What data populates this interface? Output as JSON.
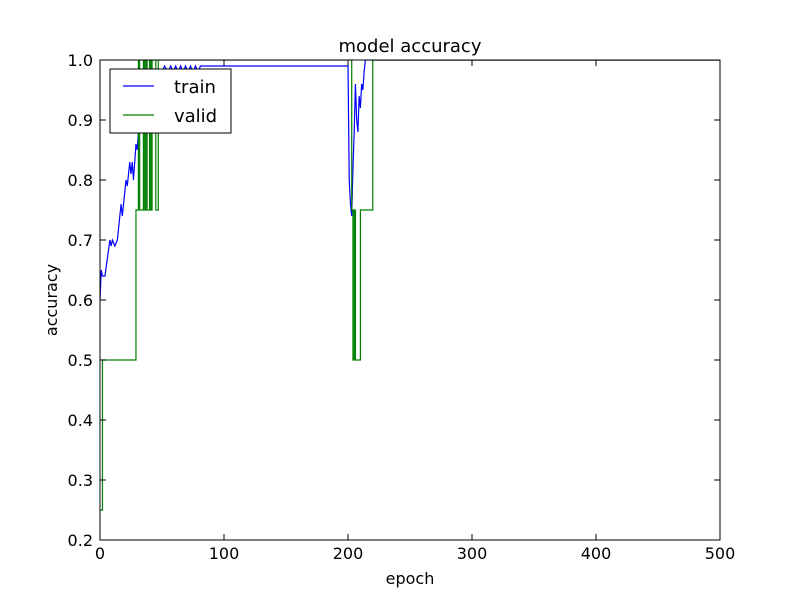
{
  "chart_data": {
    "type": "line",
    "title": "model accuracy",
    "xlabel": "epoch",
    "ylabel": "accuracy",
    "xlim": [
      0,
      500
    ],
    "ylim": [
      0.2,
      1.0
    ],
    "xticks": [
      0,
      100,
      200,
      300,
      400,
      500
    ],
    "yticks": [
      0.2,
      0.3,
      0.4,
      0.5,
      0.6,
      0.7,
      0.8,
      0.9,
      1.0
    ],
    "xtick_labels": [
      "0",
      "100",
      "200",
      "300",
      "400",
      "500"
    ],
    "ytick_labels": [
      "0.2",
      "0.3",
      "0.4",
      "0.5",
      "0.6",
      "0.7",
      "0.8",
      "0.9",
      "1.0"
    ],
    "grid": false,
    "legend_position": "top-left",
    "series": [
      {
        "name": "train",
        "color": "#0000ff",
        "points": [
          [
            0,
            0.6
          ],
          [
            1,
            0.65
          ],
          [
            2,
            0.64
          ],
          [
            4,
            0.64
          ],
          [
            6,
            0.67
          ],
          [
            8,
            0.7
          ],
          [
            9,
            0.69
          ],
          [
            10,
            0.7
          ],
          [
            12,
            0.69
          ],
          [
            14,
            0.7
          ],
          [
            16,
            0.74
          ],
          [
            17,
            0.76
          ],
          [
            18,
            0.74
          ],
          [
            19,
            0.76
          ],
          [
            21,
            0.8
          ],
          [
            22,
            0.79
          ],
          [
            24,
            0.83
          ],
          [
            25,
            0.81
          ],
          [
            26,
            0.83
          ],
          [
            27,
            0.8
          ],
          [
            29,
            0.86
          ],
          [
            30,
            0.85
          ],
          [
            31,
            0.88
          ],
          [
            33,
            0.91
          ],
          [
            34,
            0.89
          ],
          [
            36,
            0.93
          ],
          [
            37,
            0.92
          ],
          [
            38,
            0.94
          ],
          [
            40,
            0.94
          ],
          [
            42,
            0.96
          ],
          [
            44,
            0.97
          ],
          [
            46,
            0.97
          ],
          [
            48,
            0.97
          ],
          [
            50,
            0.98
          ],
          [
            52,
            0.99
          ],
          [
            55,
            0.98
          ],
          [
            57,
            0.99
          ],
          [
            59,
            0.98
          ],
          [
            61,
            0.99
          ],
          [
            63,
            0.98
          ],
          [
            65,
            0.99
          ],
          [
            67,
            0.98
          ],
          [
            69,
            0.99
          ],
          [
            71,
            0.98
          ],
          [
            73,
            0.99
          ],
          [
            75,
            0.98
          ],
          [
            77,
            0.99
          ],
          [
            79,
            0.98
          ],
          [
            81,
            0.99
          ],
          [
            150,
            0.99
          ],
          [
            200,
            0.99
          ],
          [
            201,
            0.8
          ],
          [
            202,
            0.76
          ],
          [
            203,
            0.74
          ],
          [
            204,
            0.82
          ],
          [
            205,
            0.88
          ],
          [
            206,
            0.96
          ],
          [
            207,
            0.9
          ],
          [
            208,
            0.88
          ],
          [
            209,
            0.94
          ],
          [
            210,
            0.92
          ],
          [
            211,
            0.96
          ],
          [
            212,
            0.95
          ],
          [
            213,
            0.98
          ],
          [
            214,
            1.0
          ],
          [
            220,
            1.0
          ],
          [
            500,
            1.0
          ]
        ]
      },
      {
        "name": "valid",
        "color": "#008000",
        "points": [
          [
            0,
            0.25
          ],
          [
            2,
            0.25
          ],
          [
            2,
            0.5
          ],
          [
            29,
            0.5
          ],
          [
            29,
            0.75
          ],
          [
            31,
            0.75
          ],
          [
            31,
            1.0
          ],
          [
            32,
            1.0
          ],
          [
            32,
            0.75
          ],
          [
            35,
            0.75
          ],
          [
            35,
            1.0
          ],
          [
            36,
            1.0
          ],
          [
            36,
            0.75
          ],
          [
            37,
            0.75
          ],
          [
            37,
            1.0
          ],
          [
            38,
            1.0
          ],
          [
            38,
            0.75
          ],
          [
            40,
            0.75
          ],
          [
            40,
            1.0
          ],
          [
            41,
            1.0
          ],
          [
            41,
            0.75
          ],
          [
            42,
            0.75
          ],
          [
            42,
            1.0
          ],
          [
            45,
            1.0
          ],
          [
            45,
            0.75
          ],
          [
            47,
            0.75
          ],
          [
            47,
            1.0
          ],
          [
            203,
            1.0
          ],
          [
            203,
            0.75
          ],
          [
            204,
            0.75
          ],
          [
            204,
            0.5
          ],
          [
            205,
            0.5
          ],
          [
            205,
            0.75
          ],
          [
            206,
            0.75
          ],
          [
            206,
            0.5
          ],
          [
            210,
            0.5
          ],
          [
            210,
            0.75
          ],
          [
            220,
            0.75
          ],
          [
            220,
            1.0
          ],
          [
            500,
            1.0
          ]
        ]
      }
    ]
  }
}
